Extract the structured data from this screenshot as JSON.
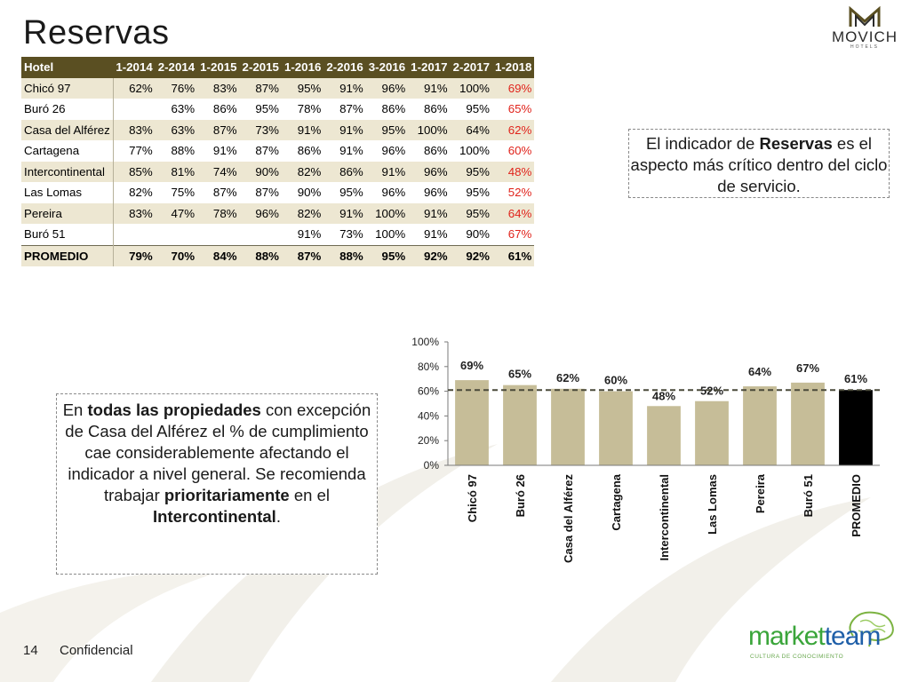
{
  "slide": {
    "title": "Reservas",
    "page_number": "14",
    "footer_label": "Confidencial"
  },
  "brand": {
    "movich_name": "MOVICH",
    "movich_sub": "HOTELS",
    "marketteam_a": "market",
    "marketteam_b": "team",
    "marketteam_tagline": "CULTURA DE CONOCIMIENTO"
  },
  "table": {
    "headers": [
      "Hotel",
      "1-2014",
      "2-2014",
      "1-2015",
      "2-2015",
      "1-2016",
      "2-2016",
      "3-2016",
      "1-2017",
      "2-2017",
      "1-2018"
    ],
    "rows": [
      [
        "Chicó 97",
        "62%",
        "76%",
        "83%",
        "87%",
        "95%",
        "91%",
        "96%",
        "91%",
        "100%",
        "69%"
      ],
      [
        "Buró 26",
        "",
        "63%",
        "86%",
        "95%",
        "78%",
        "87%",
        "86%",
        "86%",
        "95%",
        "65%"
      ],
      [
        "Casa del Alférez",
        "83%",
        "63%",
        "87%",
        "73%",
        "91%",
        "91%",
        "95%",
        "100%",
        "64%",
        "62%"
      ],
      [
        "Cartagena",
        "77%",
        "88%",
        "91%",
        "87%",
        "86%",
        "91%",
        "96%",
        "86%",
        "100%",
        "60%"
      ],
      [
        "Intercontinental",
        "85%",
        "81%",
        "74%",
        "90%",
        "82%",
        "86%",
        "91%",
        "96%",
        "95%",
        "48%"
      ],
      [
        "Las Lomas",
        "82%",
        "75%",
        "87%",
        "87%",
        "90%",
        "95%",
        "96%",
        "96%",
        "95%",
        "52%"
      ],
      [
        "Pereira",
        "83%",
        "47%",
        "78%",
        "96%",
        "82%",
        "91%",
        "100%",
        "91%",
        "95%",
        "64%"
      ],
      [
        "Buró 51",
        "",
        "",
        "",
        "",
        "91%",
        "73%",
        "100%",
        "91%",
        "90%",
        "67%"
      ]
    ],
    "average": [
      "PROMEDIO",
      "79%",
      "70%",
      "84%",
      "88%",
      "87%",
      "88%",
      "95%",
      "92%",
      "92%",
      "61%"
    ]
  },
  "callout_reservas": {
    "pre": "El indicador de ",
    "bold": "Reservas",
    "post": " es el aspecto más crítico dentro del ciclo de servicio."
  },
  "callout_propiedades": {
    "t1": "En ",
    "b1": "todas las propiedades",
    "t2": " con excepción de Casa del Alférez el % de cumplimiento cae considerablemente afectando el indicador a nivel general. Se recomienda trabajar ",
    "b2": "prioritariamente",
    "t3": " en el ",
    "b3": "Intercontinental",
    "t4": "."
  },
  "colors": {
    "header_bg": "#5a4f22",
    "row_band": "#ede7d2",
    "highlight_text": "#e0231b",
    "bar": "#c6bd98",
    "bar_average": "#000000"
  },
  "chart_data": {
    "type": "bar",
    "categories": [
      "Chicó 97",
      "Buró 26",
      "Casa del Alférez",
      "Cartagena",
      "Intercontinental",
      "Las Lomas",
      "Pereira",
      "Buró 51",
      "PROMEDIO"
    ],
    "values": [
      69,
      65,
      62,
      60,
      48,
      52,
      64,
      67,
      61
    ],
    "data_labels": [
      "69%",
      "65%",
      "62%",
      "60%",
      "48%",
      "52%",
      "64%",
      "67%",
      "61%"
    ],
    "highlight_category": "PROMEDIO",
    "reference_line": 61,
    "ylim": [
      0,
      100
    ],
    "yticks": [
      "0%",
      "20%",
      "40%",
      "60%",
      "80%",
      "100%"
    ],
    "ytick_values": [
      0,
      20,
      40,
      60,
      80,
      100
    ],
    "grid": false,
    "legend": "none"
  }
}
